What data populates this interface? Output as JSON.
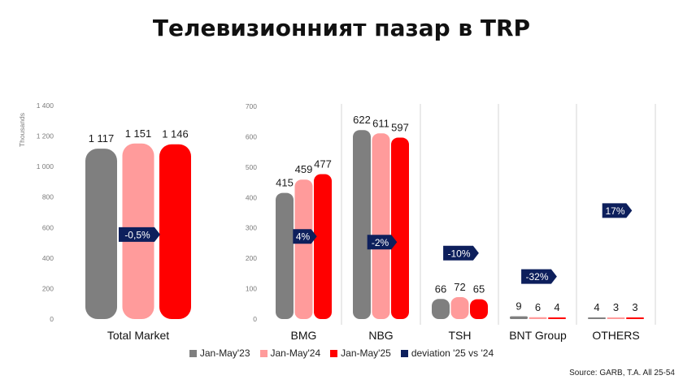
{
  "title": "Телевизионният пазар в TRP",
  "colors": {
    "jan_may_23": "#7f7f7f",
    "jan_may_24": "#ff9b9b",
    "jan_may_25": "#ff0000",
    "deviation": "#0d1f5c"
  },
  "legend": [
    {
      "key": "jan_may_23",
      "label": "Jan-May'23"
    },
    {
      "key": "jan_may_24",
      "label": "Jan-May'24"
    },
    {
      "key": "jan_may_25",
      "label": "Jan-May'25"
    },
    {
      "key": "deviation",
      "label": "deviation '25 vs '24"
    }
  ],
  "source": "Source: GARB, T.A. All 25-54",
  "chart_data": [
    {
      "type": "bar",
      "unit_label": "Thousands",
      "yticks": [
        "1 400",
        "1 200",
        "1 000",
        "800",
        "600",
        "400",
        "200",
        "0"
      ],
      "ylim": [
        0,
        1400
      ],
      "categories": [
        "Total Market"
      ],
      "series": [
        {
          "name": "Jan-May'23",
          "values": [
            1117
          ],
          "labels": [
            "1 117"
          ]
        },
        {
          "name": "Jan-May'24",
          "values": [
            1151
          ],
          "labels": [
            "1 151"
          ]
        },
        {
          "name": "Jan-May'25",
          "values": [
            1146
          ],
          "labels": [
            "1 146"
          ]
        }
      ],
      "deviation": [
        {
          "label": "-0,5%",
          "level": 554
        }
      ]
    },
    {
      "type": "bar",
      "yticks": [
        "700",
        "600",
        "500",
        "400",
        "300",
        "200",
        "100",
        "0"
      ],
      "ylim": [
        0,
        700
      ],
      "categories": [
        "BMG",
        "NBG",
        "TSH",
        "BNT Group",
        "OTHERS"
      ],
      "series": [
        {
          "name": "Jan-May'23",
          "values": [
            415,
            622,
            66,
            9,
            4
          ],
          "labels": [
            "415",
            "622",
            "66",
            "9",
            "4"
          ]
        },
        {
          "name": "Jan-May'24",
          "values": [
            459,
            611,
            72,
            6,
            3
          ],
          "labels": [
            "459",
            "611",
            "72",
            "6",
            "3"
          ]
        },
        {
          "name": "Jan-May'25",
          "values": [
            477,
            597,
            65,
            4,
            3
          ],
          "labels": [
            "477",
            "597",
            "65",
            "4",
            "3"
          ]
        }
      ],
      "deviation": [
        {
          "label": "4%",
          "level": 272
        },
        {
          "label": "-2%",
          "level": 253
        },
        {
          "label": "-10%",
          "level": 217
        },
        {
          "label": "-32%",
          "level": 140
        },
        {
          "label": "17%",
          "level": 357
        }
      ]
    }
  ]
}
